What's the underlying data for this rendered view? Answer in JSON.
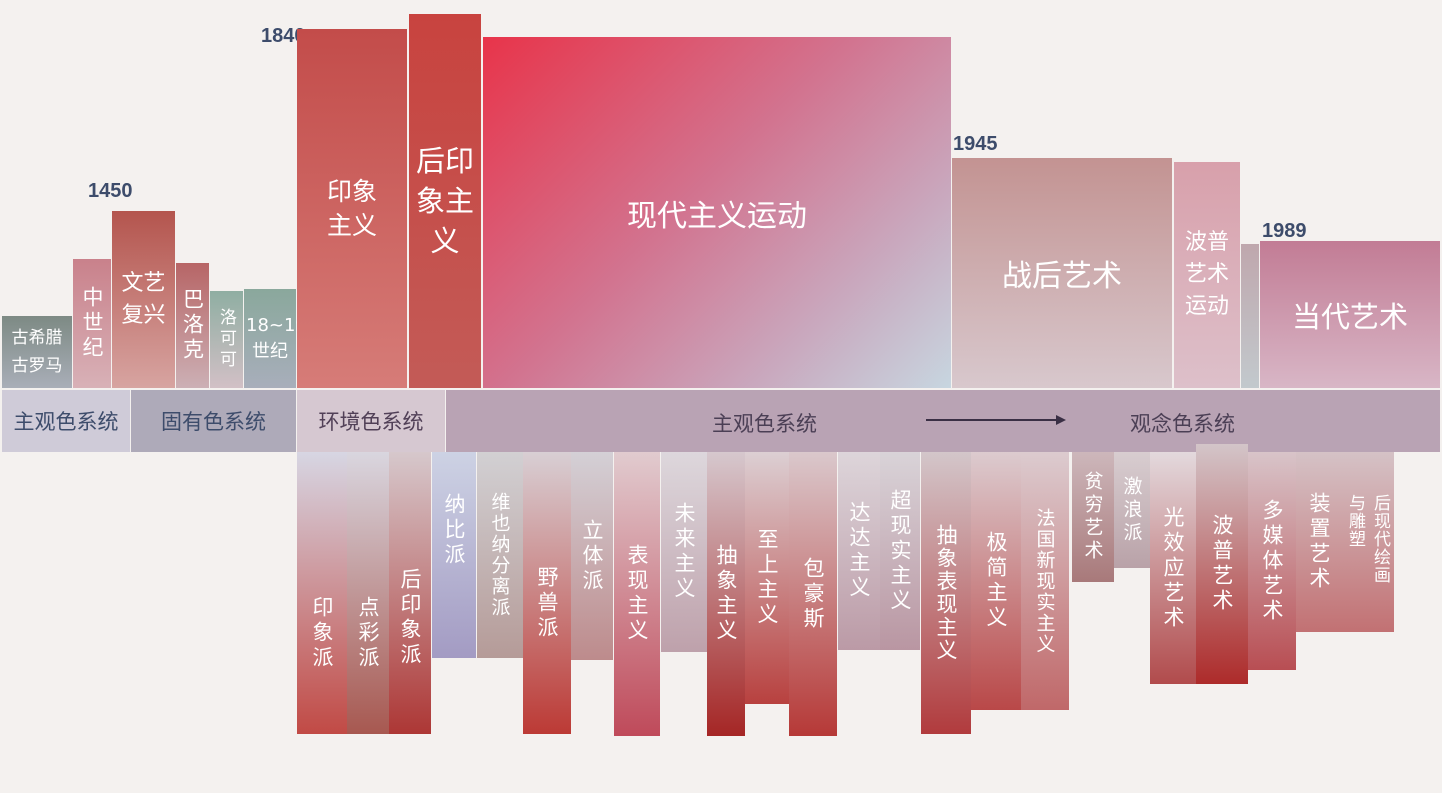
{
  "years": {
    "y1450": "1450",
    "y1840": "1840",
    "y1945": "1945",
    "y1989": "1989"
  },
  "periods": {
    "ancient": "古希腊古罗马",
    "medieval": "中世纪",
    "renaissance": "文艺复兴",
    "baroque": "巴洛克",
    "rococo": "洛可可",
    "c18_19": "18~19世纪",
    "impressionism": "印象主义",
    "post_impressionism": "后印象主义",
    "modernism": "现代主义运动",
    "postwar": "战后艺术",
    "pop_art": "波普艺术运动",
    "contemporary": "当代艺术"
  },
  "bands": {
    "subjective1": "主观色系统",
    "inherent": "固有色系统",
    "environmental": "环境色系统",
    "subjective2": "主观色系统",
    "conceptual": "观念色系统"
  },
  "movements": {
    "impressionist": "印象派",
    "pointillism": "点彩派",
    "post_impressionist": "后印象派",
    "nabis": "纳比派",
    "vienna_secession": "维也纳分离派",
    "fauvism": "野兽派",
    "cubism": "立体派",
    "expressionism": "表现主义",
    "futurism": "未来主义",
    "abstractionism": "抽象主义",
    "suprematism": "至上主义",
    "bauhaus": "包豪斯",
    "dadaism": "达达主义",
    "surrealism": "超现实主义",
    "abstract_expressionism": "抽象表现主义",
    "minimalism": "极简主义",
    "french_new_realism": "法国新现实主义",
    "arte_povera": "贫穷艺术",
    "gutai": "激浪派",
    "op_art": "光效应艺术",
    "pop": "波普艺术",
    "multimedia": "多媒体艺术",
    "installation": "装置艺术",
    "postmodern_painting": "后现代绘画与雕塑"
  },
  "colors": {
    "accent": "#e8344a",
    "band": "#b9a3b4",
    "year_text": "#3d4c6b"
  }
}
